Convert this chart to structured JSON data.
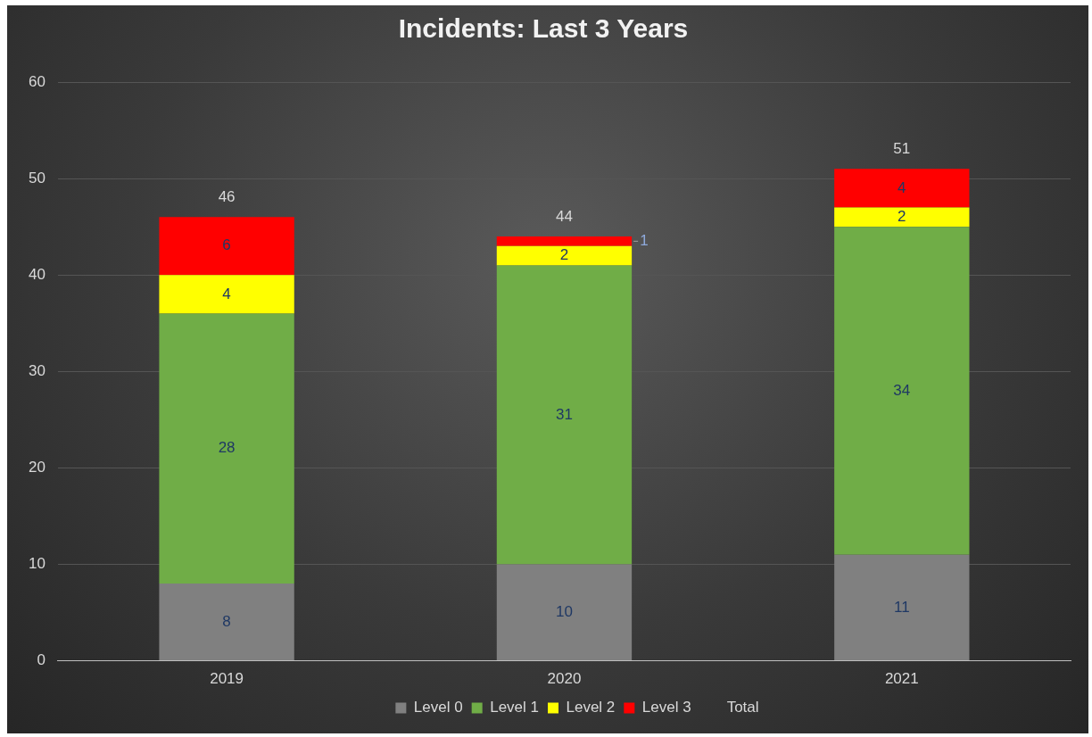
{
  "chart_data": {
    "type": "bar",
    "title": "Incidents: Last 3 Years",
    "categories": [
      "2019",
      "2020",
      "2021"
    ],
    "stacked": true,
    "series": [
      {
        "name": "Level 0",
        "color": "#808080",
        "values": [
          8,
          10,
          11
        ]
      },
      {
        "name": "Level 1",
        "color": "#70ad47",
        "values": [
          28,
          31,
          34
        ]
      },
      {
        "name": "Level 2",
        "color": "#ffff00",
        "values": [
          4,
          2,
          2
        ]
      },
      {
        "name": "Level 3",
        "color": "#ff0000",
        "values": [
          6,
          1,
          4
        ]
      }
    ],
    "annotations": [
      "Total"
    ],
    "totals": [
      "46",
      "44",
      "51"
    ],
    "ylim": [
      0,
      60
    ],
    "yticks": [
      0,
      10,
      20,
      30,
      40,
      50,
      60
    ],
    "grid": "y",
    "legend": "bottom",
    "data_labels": true
  }
}
